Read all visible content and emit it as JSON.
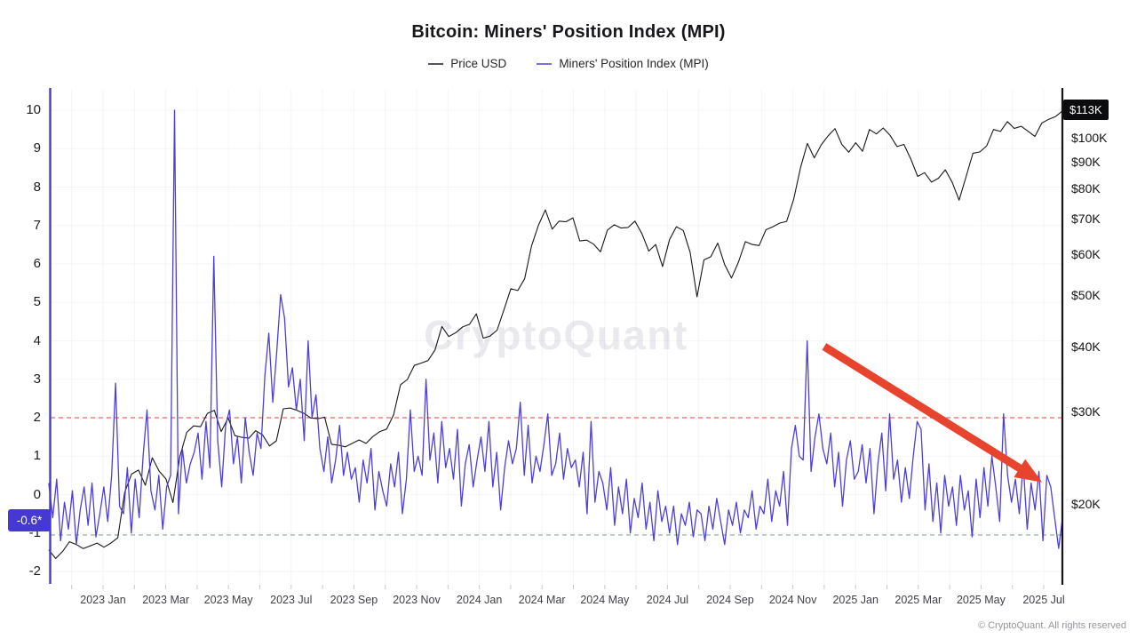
{
  "header": {
    "title": "Bitcoin: Miners' Position Index (MPI)",
    "legend": [
      {
        "label": "Price USD",
        "color": "#52525b"
      },
      {
        "label": "Miners' Position Index (MPI)",
        "color": "#7c6ee6"
      }
    ]
  },
  "watermark": "CryptoQuant",
  "footer": "© CryptoQuant. All rights reserved",
  "badges": {
    "current_price": "$113K",
    "current_mpi": "-0.6*",
    "price_badge_bg": "#0c0c0f",
    "mpi_badge_bg": "#4638d2"
  },
  "chart_data": {
    "type": "line",
    "title": "Bitcoin: Miners' Position Index (MPI)",
    "xlabel": "",
    "ylabel_left": "Miners' Position Index (MPI)",
    "ylabel_right": "Price USD",
    "grid": "faint",
    "legend_position": "top-center",
    "t_start": -1.73,
    "t_end": 30.6,
    "x_ticks": [
      {
        "label": "2023 Jan",
        "t": 0
      },
      {
        "label": "2023 Mar",
        "t": 2
      },
      {
        "label": "2023 May",
        "t": 4
      },
      {
        "label": "2023 Jul",
        "t": 6
      },
      {
        "label": "2023 Sep",
        "t": 8
      },
      {
        "label": "2023 Nov",
        "t": 10
      },
      {
        "label": "2024 Jan",
        "t": 12
      },
      {
        "label": "2024 Mar",
        "t": 14
      },
      {
        "label": "2024 May",
        "t": 16
      },
      {
        "label": "2024 Jul",
        "t": 18
      },
      {
        "label": "2024 Sep",
        "t": 20
      },
      {
        "label": "2024 Nov",
        "t": 22
      },
      {
        "label": "2025 Jan",
        "t": 24
      },
      {
        "label": "2025 Mar",
        "t": 26
      },
      {
        "label": "2025 May",
        "t": 28
      },
      {
        "label": "2025 Jul",
        "t": 30
      }
    ],
    "left_axis": {
      "scale": "linear",
      "range": [
        -2.55,
        10.55
      ],
      "ticks": [
        10,
        9,
        8,
        7,
        6,
        5,
        4,
        3,
        2,
        1,
        0,
        -1,
        -2
      ]
    },
    "right_axis": {
      "scale": "log",
      "ticks": [
        {
          "label": "$100K",
          "value": 100
        },
        {
          "label": "$90K",
          "value": 90
        },
        {
          "label": "$80K",
          "value": 80
        },
        {
          "label": "$70K",
          "value": 70
        },
        {
          "label": "$60K",
          "value": 60
        },
        {
          "label": "$50K",
          "value": 50
        },
        {
          "label": "$40K",
          "value": 40
        },
        {
          "label": "$30K",
          "value": 30
        },
        {
          "label": "$20K",
          "value": 20
        }
      ]
    },
    "thresholds": [
      {
        "name": "mpi-upper-threshold",
        "value": 2,
        "color": "#e06a66",
        "style": "dashed"
      },
      {
        "name": "mpi-lower-threshold",
        "value": -1.05,
        "color": "#86a793",
        "style": "dashed"
      }
    ],
    "annotation_arrow": {
      "from_t": 23.0,
      "from_mpi": 3.85,
      "to_t": 29.95,
      "to_mpi": 0.32,
      "color": "#e8432c"
    },
    "series": [
      {
        "name": "Price USD",
        "axis": "right",
        "color": "#17171c",
        "unit": "thousand USD",
        "values": [
          16.4,
          15.8,
          16.3,
          17.0,
          16.8,
          16.5,
          16.7,
          16.9,
          16.6,
          16.9,
          17.3,
          21.1,
          22.9,
          23.3,
          21.8,
          24.6,
          23.2,
          22.4,
          20.2,
          24.7,
          27.5,
          28.3,
          28.2,
          29.9,
          30.3,
          27.6,
          29.3,
          27.1,
          26.9,
          26.8,
          27.7,
          27.2,
          25.9,
          26.5,
          30.5,
          30.6,
          30.3,
          29.9,
          29.3,
          29.2,
          29.4,
          26.1,
          26.0,
          25.8,
          26.2,
          26.6,
          26.2,
          27.0,
          27.6,
          27.9,
          29.7,
          33.9,
          34.7,
          36.9,
          37.3,
          37.7,
          39.5,
          43.8,
          41.9,
          42.6,
          43.7,
          44.2,
          46.3,
          41.6,
          42.0,
          43.1,
          47.1,
          51.7,
          51.3,
          54.0,
          62.4,
          68.3,
          73.1,
          67.2,
          69.6,
          69.4,
          70.6,
          63.8,
          64.0,
          62.9,
          60.8,
          66.9,
          68.5,
          67.5,
          67.7,
          69.6,
          65.9,
          61.0,
          62.8,
          57.0,
          64.1,
          67.9,
          66.8,
          60.7,
          49.9,
          58.7,
          59.5,
          63.2,
          57.5,
          54.2,
          58.1,
          63.6,
          62.8,
          62.5,
          67.0,
          67.9,
          69.0,
          69.5,
          76.5,
          88.0,
          97.9,
          91.9,
          97.3,
          101.2,
          104.5,
          97.5,
          94.2,
          98.2,
          94.6,
          104.1,
          102.1,
          104.8,
          101.4,
          96.6,
          97.5,
          91.4,
          84.7,
          86.1,
          82.6,
          84.0,
          87.2,
          82.5,
          76.3,
          84.5,
          93.8,
          94.3,
          96.9,
          104.1,
          103.2,
          107.8,
          104.6,
          105.6,
          103.3,
          101.0,
          107.1,
          108.9,
          110.2,
          113.0
        ]
      },
      {
        "name": "Miners' Position Index (MPI)",
        "axis": "left",
        "color": "#4c3fd9",
        "values": [
          0.3,
          -0.6,
          0.4,
          -1.2,
          -0.2,
          -0.9,
          0.1,
          -1.3,
          -0.4,
          0.2,
          -0.8,
          0.3,
          -1.1,
          -0.5,
          0.2,
          -0.7,
          0.5,
          2.9,
          -0.3,
          -0.5,
          0.7,
          -1.0,
          0.4,
          -0.6,
          1.0,
          2.2,
          0.1,
          -0.4,
          0.5,
          -0.9,
          0.2,
          0.5,
          10.0,
          -0.5,
          1.2,
          0.3,
          0.8,
          1.1,
          1.6,
          0.4,
          1.9,
          0.7,
          6.2,
          1.4,
          0.2,
          1.8,
          2.2,
          0.8,
          1.5,
          0.3,
          2.0,
          1.1,
          0.5,
          1.6,
          1.2,
          3.1,
          4.2,
          2.4,
          3.7,
          5.2,
          4.6,
          2.8,
          3.3,
          2.2,
          3.0,
          1.4,
          4.0,
          2.0,
          2.6,
          1.2,
          0.6,
          1.5,
          0.3,
          0.9,
          1.8,
          0.5,
          1.1,
          0.4,
          0.7,
          -0.2,
          0.9,
          0.3,
          1.2,
          -0.4,
          0.6,
          0.1,
          -0.3,
          0.8,
          0.2,
          1.1,
          -0.5,
          0.4,
          2.2,
          0.6,
          1.0,
          0.5,
          3.0,
          0.9,
          1.6,
          0.3,
          1.9,
          0.7,
          1.2,
          0.4,
          1.7,
          -0.3,
          0.8,
          1.3,
          0.2,
          0.9,
          1.5,
          0.6,
          1.9,
          0.2,
          1.1,
          -0.4,
          0.7,
          1.4,
          0.8,
          1.2,
          2.4,
          0.5,
          1.8,
          0.3,
          1.0,
          0.6,
          1.3,
          2.1,
          0.5,
          0.8,
          1.6,
          0.4,
          1.2,
          0.7,
          0.9,
          0.2,
          1.1,
          -0.5,
          1.9,
          -0.2,
          0.6,
          0.3,
          -0.4,
          0.7,
          -0.8,
          0.2,
          -0.5,
          0.4,
          -1.0,
          -0.1,
          -0.6,
          0.3,
          -0.9,
          -0.2,
          -1.2,
          0.1,
          -0.7,
          -0.3,
          -1.0,
          -0.3,
          -1.3,
          -0.5,
          -0.8,
          -0.2,
          -1.1,
          -0.4,
          -0.5,
          -1.2,
          -0.3,
          -0.9,
          -0.1,
          -0.7,
          -1.3,
          -0.4,
          -0.8,
          -0.2,
          -1.0,
          -0.4,
          -0.6,
          0.1,
          -0.9,
          -0.3,
          -0.5,
          0.4,
          -0.7,
          0.1,
          -0.3,
          0.6,
          -0.8,
          1.2,
          1.8,
          1.0,
          0.9,
          4.0,
          0.6,
          1.5,
          2.1,
          1.2,
          0.8,
          1.6,
          0.2,
          1.1,
          -0.3,
          0.9,
          1.4,
          0.4,
          0.6,
          1.3,
          0.3,
          1.2,
          -0.5,
          0.8,
          1.6,
          0.1,
          2.1,
          0.4,
          0.9,
          -0.2,
          0.7,
          -0.1,
          1.0,
          1.9,
          1.7,
          -0.4,
          0.8,
          -0.7,
          0.3,
          -1.0,
          0.5,
          -0.3,
          0.2,
          -0.8,
          0.5,
          -0.4,
          0.1,
          -1.1,
          0.4,
          -0.6,
          0.7,
          -0.3,
          1.0,
          0.2,
          -0.7,
          2.1,
          0.5,
          -0.2,
          0.4,
          -0.5,
          0.8,
          -0.9,
          0.3,
          -0.4,
          0.6,
          -1.2,
          0.5,
          0.2,
          -0.6,
          -1.4,
          -0.6
        ]
      }
    ]
  }
}
